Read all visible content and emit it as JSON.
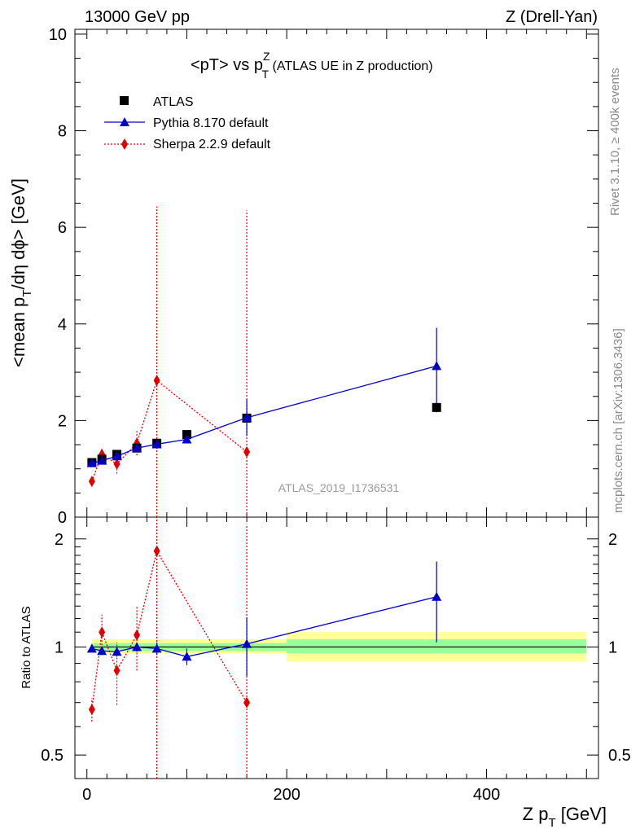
{
  "header": {
    "left": "13000 GeV pp",
    "right": "Z (Drell-Yan)"
  },
  "plot_title": {
    "main_a": "<pT> vs p",
    "main_sup": "Z",
    "main_sub": "T",
    "main_b": " (ATLAS UE in Z production)"
  },
  "side_labels": {
    "rivet": "Rivet 3.1.10, ≥ 400k events",
    "mcplots": "mcplots.cern.ch [arXiv:1306.3436]"
  },
  "watermark": "ATLAS_2019_I1736531",
  "axes": {
    "ylabel_top": "<mean p_T/dη dϕ> [GeV]",
    "ylabel_top_parts": [
      "<mean p",
      "T",
      "/dη dϕ> [GeV]"
    ],
    "ylabel_bottom": "Ratio to ATLAS",
    "xlabel_parts": [
      "Z p",
      "T",
      " [GeV]"
    ]
  },
  "colors": {
    "atlas": "#000000",
    "pythia": "#0000cc",
    "sherpa": "#e00000",
    "band_inner": "#99ff99",
    "band_outer": "#ffff99"
  },
  "chart_data": {
    "type": "scatter",
    "x_range": [
      -12,
      512
    ],
    "top_panel": {
      "ylim": [
        0,
        10.1
      ],
      "yticks": [
        0,
        2,
        4,
        6,
        8,
        10
      ],
      "ytick_labels": [
        "0",
        "2",
        "4",
        "6",
        "8",
        "10"
      ]
    },
    "ratio_panel": {
      "log_scale": true,
      "ylim": [
        0.43,
        2.3
      ],
      "yticks": [
        0.5,
        1,
        2
      ],
      "ytick_labels": [
        "0.5",
        "1",
        "2"
      ]
    },
    "xticks": [
      0,
      200,
      400
    ],
    "xtick_labels": [
      "0",
      "200",
      "400"
    ],
    "legend": [
      "ATLAS",
      "Pythia 8.170 default",
      "Sherpa 2.2.9 default"
    ],
    "series": [
      {
        "name": "ATLAS",
        "marker": "square",
        "x": [
          5,
          15,
          30,
          50,
          70,
          100,
          160,
          350
        ],
        "y": [
          1.13,
          1.2,
          1.3,
          1.43,
          1.53,
          1.71,
          2.05,
          2.27
        ],
        "yerr": [
          0.03,
          0.03,
          0.04,
          0.04,
          0.04,
          0.05,
          0.08,
          0.1
        ]
      },
      {
        "name": "Pythia 8.170 default",
        "marker": "triangle",
        "x": [
          5,
          15,
          30,
          50,
          70,
          100,
          160,
          350
        ],
        "y": [
          1.12,
          1.17,
          1.26,
          1.43,
          1.51,
          1.61,
          2.06,
          3.13
        ],
        "yerr": [
          0.02,
          0.03,
          0.03,
          0.04,
          0.05,
          0.08,
          0.38,
          0.79
        ],
        "ratio": [
          0.99,
          0.975,
          0.97,
          1.0,
          0.99,
          0.94,
          1.02,
          1.38
        ],
        "ratio_err": [
          0.02,
          0.025,
          0.03,
          0.03,
          0.04,
          0.05,
          0.19,
          0.35
        ]
      },
      {
        "name": "Sherpa 2.2.9 default",
        "marker": "diamond",
        "x": [
          5,
          15,
          30,
          50,
          70,
          160
        ],
        "y": [
          0.74,
          1.3,
          1.1,
          1.53,
          2.83,
          1.35
        ],
        "yerr": [
          0.08,
          0.12,
          0.2,
          0.25,
          3.6,
          5.0
        ],
        "ratio": [
          0.67,
          1.1,
          0.86,
          1.08,
          1.85,
          0.7
        ],
        "ratio_err": [
          0.05,
          0.13,
          0.17,
          0.22,
          1.5,
          1.5
        ]
      }
    ],
    "ratio_bands": [
      {
        "x": [
          5,
          200
        ],
        "inner": [
          0.975,
          1.025
        ],
        "outer": [
          0.96,
          1.05
        ]
      },
      {
        "x": [
          200,
          500
        ],
        "inner": [
          0.96,
          1.05
        ],
        "outer": [
          0.91,
          1.1
        ]
      }
    ]
  }
}
